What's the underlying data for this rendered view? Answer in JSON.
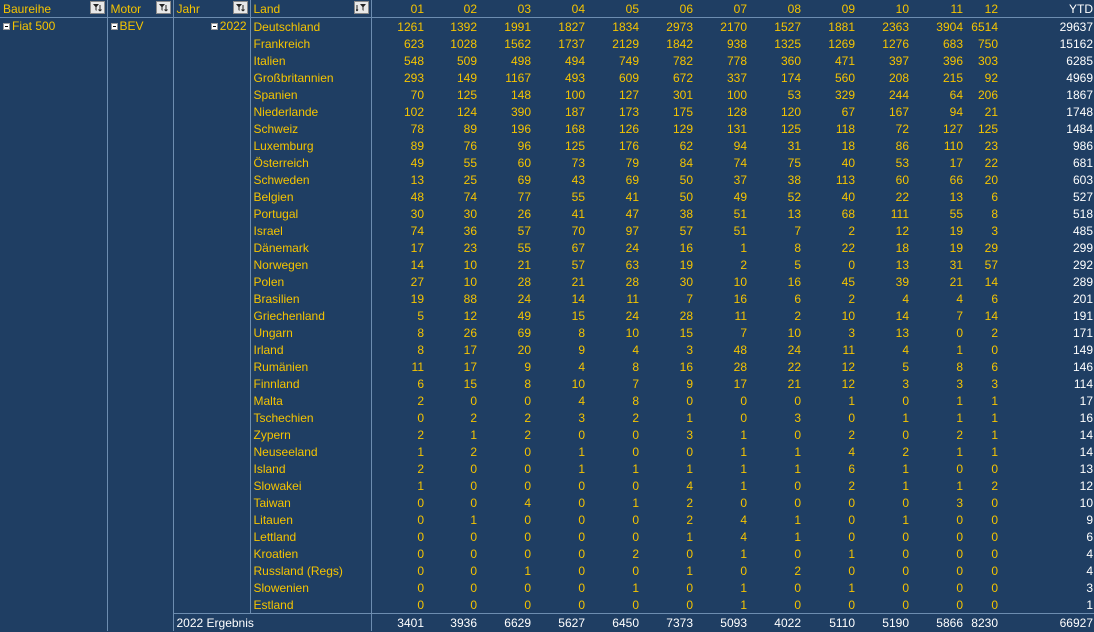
{
  "headers": {
    "baureihe": "Baureihe",
    "motor": "Motor",
    "jahr": "Jahr",
    "land": "Land",
    "months": [
      "01",
      "02",
      "03",
      "04",
      "05",
      "06",
      "07",
      "08",
      "09",
      "10",
      "11",
      "12"
    ],
    "ytd": "YTD"
  },
  "group": {
    "baureihe": "Fiat 500",
    "motor": "BEV",
    "jahr": "2022"
  },
  "rows": [
    {
      "land": "Deutschland",
      "values": [
        "1261",
        "1392",
        "1991",
        "1827",
        "1834",
        "2973",
        "2170",
        "1527",
        "1881",
        "2363",
        "3904",
        "6514"
      ],
      "ytd": "29637"
    },
    {
      "land": "Frankreich",
      "values": [
        "623",
        "1028",
        "1562",
        "1737",
        "2129",
        "1842",
        "938",
        "1325",
        "1269",
        "1276",
        "683",
        "750"
      ],
      "ytd": "15162"
    },
    {
      "land": "Italien",
      "values": [
        "548",
        "509",
        "498",
        "494",
        "749",
        "782",
        "778",
        "360",
        "471",
        "397",
        "396",
        "303"
      ],
      "ytd": "6285"
    },
    {
      "land": "Großbritannien",
      "values": [
        "293",
        "149",
        "1167",
        "493",
        "609",
        "672",
        "337",
        "174",
        "560",
        "208",
        "215",
        "92"
      ],
      "ytd": "4969"
    },
    {
      "land": "Spanien",
      "values": [
        "70",
        "125",
        "148",
        "100",
        "127",
        "301",
        "100",
        "53",
        "329",
        "244",
        "64",
        "206"
      ],
      "ytd": "1867"
    },
    {
      "land": "Niederlande",
      "values": [
        "102",
        "124",
        "390",
        "187",
        "173",
        "175",
        "128",
        "120",
        "67",
        "167",
        "94",
        "21"
      ],
      "ytd": "1748"
    },
    {
      "land": "Schweiz",
      "values": [
        "78",
        "89",
        "196",
        "168",
        "126",
        "129",
        "131",
        "125",
        "118",
        "72",
        "127",
        "125"
      ],
      "ytd": "1484"
    },
    {
      "land": "Luxemburg",
      "values": [
        "89",
        "76",
        "96",
        "125",
        "176",
        "62",
        "94",
        "31",
        "18",
        "86",
        "110",
        "23"
      ],
      "ytd": "986"
    },
    {
      "land": "Österreich",
      "values": [
        "49",
        "55",
        "60",
        "73",
        "79",
        "84",
        "74",
        "75",
        "40",
        "53",
        "17",
        "22"
      ],
      "ytd": "681"
    },
    {
      "land": "Schweden",
      "values": [
        "13",
        "25",
        "69",
        "43",
        "69",
        "50",
        "37",
        "38",
        "113",
        "60",
        "66",
        "20"
      ],
      "ytd": "603"
    },
    {
      "land": "Belgien",
      "values": [
        "48",
        "74",
        "77",
        "55",
        "41",
        "50",
        "49",
        "52",
        "40",
        "22",
        "13",
        "6"
      ],
      "ytd": "527"
    },
    {
      "land": "Portugal",
      "values": [
        "30",
        "30",
        "26",
        "41",
        "47",
        "38",
        "51",
        "13",
        "68",
        "111",
        "55",
        "8"
      ],
      "ytd": "518"
    },
    {
      "land": "Israel",
      "values": [
        "74",
        "36",
        "57",
        "70",
        "97",
        "57",
        "51",
        "7",
        "2",
        "12",
        "19",
        "3"
      ],
      "ytd": "485"
    },
    {
      "land": "Dänemark",
      "values": [
        "17",
        "23",
        "55",
        "67",
        "24",
        "16",
        "1",
        "8",
        "22",
        "18",
        "19",
        "29"
      ],
      "ytd": "299"
    },
    {
      "land": "Norwegen",
      "values": [
        "14",
        "10",
        "21",
        "57",
        "63",
        "19",
        "2",
        "5",
        "0",
        "13",
        "31",
        "57"
      ],
      "ytd": "292"
    },
    {
      "land": "Polen",
      "values": [
        "27",
        "10",
        "28",
        "21",
        "28",
        "30",
        "10",
        "16",
        "45",
        "39",
        "21",
        "14"
      ],
      "ytd": "289"
    },
    {
      "land": "Brasilien",
      "values": [
        "19",
        "88",
        "24",
        "14",
        "11",
        "7",
        "16",
        "6",
        "2",
        "4",
        "4",
        "6"
      ],
      "ytd": "201"
    },
    {
      "land": "Griechenland",
      "values": [
        "5",
        "12",
        "49",
        "15",
        "24",
        "28",
        "11",
        "2",
        "10",
        "14",
        "7",
        "14"
      ],
      "ytd": "191"
    },
    {
      "land": "Ungarn",
      "values": [
        "8",
        "26",
        "69",
        "8",
        "10",
        "15",
        "7",
        "10",
        "3",
        "13",
        "0",
        "2"
      ],
      "ytd": "171"
    },
    {
      "land": "Irland",
      "values": [
        "8",
        "17",
        "20",
        "9",
        "4",
        "3",
        "48",
        "24",
        "11",
        "4",
        "1",
        "0"
      ],
      "ytd": "149"
    },
    {
      "land": "Rumänien",
      "values": [
        "11",
        "17",
        "9",
        "4",
        "8",
        "16",
        "28",
        "22",
        "12",
        "5",
        "8",
        "6"
      ],
      "ytd": "146"
    },
    {
      "land": "Finnland",
      "values": [
        "6",
        "15",
        "8",
        "10",
        "7",
        "9",
        "17",
        "21",
        "12",
        "3",
        "3",
        "3"
      ],
      "ytd": "114"
    },
    {
      "land": "Malta",
      "values": [
        "2",
        "0",
        "0",
        "4",
        "8",
        "0",
        "0",
        "0",
        "1",
        "0",
        "1",
        "1"
      ],
      "ytd": "17"
    },
    {
      "land": "Tschechien",
      "values": [
        "0",
        "2",
        "2",
        "3",
        "2",
        "1",
        "0",
        "3",
        "0",
        "1",
        "1",
        "1"
      ],
      "ytd": "16"
    },
    {
      "land": "Zypern",
      "values": [
        "2",
        "1",
        "2",
        "0",
        "0",
        "3",
        "1",
        "0",
        "2",
        "0",
        "2",
        "1"
      ],
      "ytd": "14"
    },
    {
      "land": "Neuseeland",
      "values": [
        "1",
        "2",
        "0",
        "1",
        "0",
        "0",
        "1",
        "1",
        "4",
        "2",
        "1",
        "1"
      ],
      "ytd": "14"
    },
    {
      "land": "Island",
      "values": [
        "2",
        "0",
        "0",
        "1",
        "1",
        "1",
        "1",
        "1",
        "6",
        "1",
        "0",
        "0"
      ],
      "ytd": "13"
    },
    {
      "land": "Slowakei",
      "values": [
        "1",
        "0",
        "0",
        "0",
        "0",
        "4",
        "1",
        "0",
        "2",
        "1",
        "1",
        "2"
      ],
      "ytd": "12"
    },
    {
      "land": "Taiwan",
      "values": [
        "0",
        "0",
        "4",
        "0",
        "1",
        "2",
        "0",
        "0",
        "0",
        "0",
        "3",
        "0"
      ],
      "ytd": "10"
    },
    {
      "land": "Litauen",
      "values": [
        "0",
        "1",
        "0",
        "0",
        "0",
        "2",
        "4",
        "1",
        "0",
        "1",
        "0",
        "0"
      ],
      "ytd": "9"
    },
    {
      "land": "Lettland",
      "values": [
        "0",
        "0",
        "0",
        "0",
        "0",
        "1",
        "4",
        "1",
        "0",
        "0",
        "0",
        "0"
      ],
      "ytd": "6"
    },
    {
      "land": "Kroatien",
      "values": [
        "0",
        "0",
        "0",
        "0",
        "2",
        "0",
        "1",
        "0",
        "1",
        "0",
        "0",
        "0"
      ],
      "ytd": "4"
    },
    {
      "land": "Russland (Regs)",
      "values": [
        "0",
        "0",
        "1",
        "0",
        "0",
        "1",
        "0",
        "2",
        "0",
        "0",
        "0",
        "0"
      ],
      "ytd": "4"
    },
    {
      "land": "Slowenien",
      "values": [
        "0",
        "0",
        "0",
        "0",
        "1",
        "0",
        "1",
        "0",
        "1",
        "0",
        "0",
        "0"
      ],
      "ytd": "3"
    },
    {
      "land": "Estland",
      "values": [
        "0",
        "0",
        "0",
        "0",
        "0",
        "0",
        "1",
        "0",
        "0",
        "0",
        "0",
        "0"
      ],
      "ytd": "1"
    }
  ],
  "total": {
    "label": "2022 Ergebnis",
    "values": [
      "3401",
      "3936",
      "6629",
      "5627",
      "6450",
      "7373",
      "5093",
      "4022",
      "5110",
      "5190",
      "5866",
      "8230"
    ],
    "ytd": "66927"
  },
  "colors": {
    "background": "#1f3e63",
    "text": "#f5c400",
    "total_text": "#ffffff",
    "gridline": "#6d8db0"
  },
  "icons": {
    "filter": "filter-dropdown-icon",
    "sort": "sort-filter-icon",
    "collapse": "collapse-minus-icon"
  }
}
